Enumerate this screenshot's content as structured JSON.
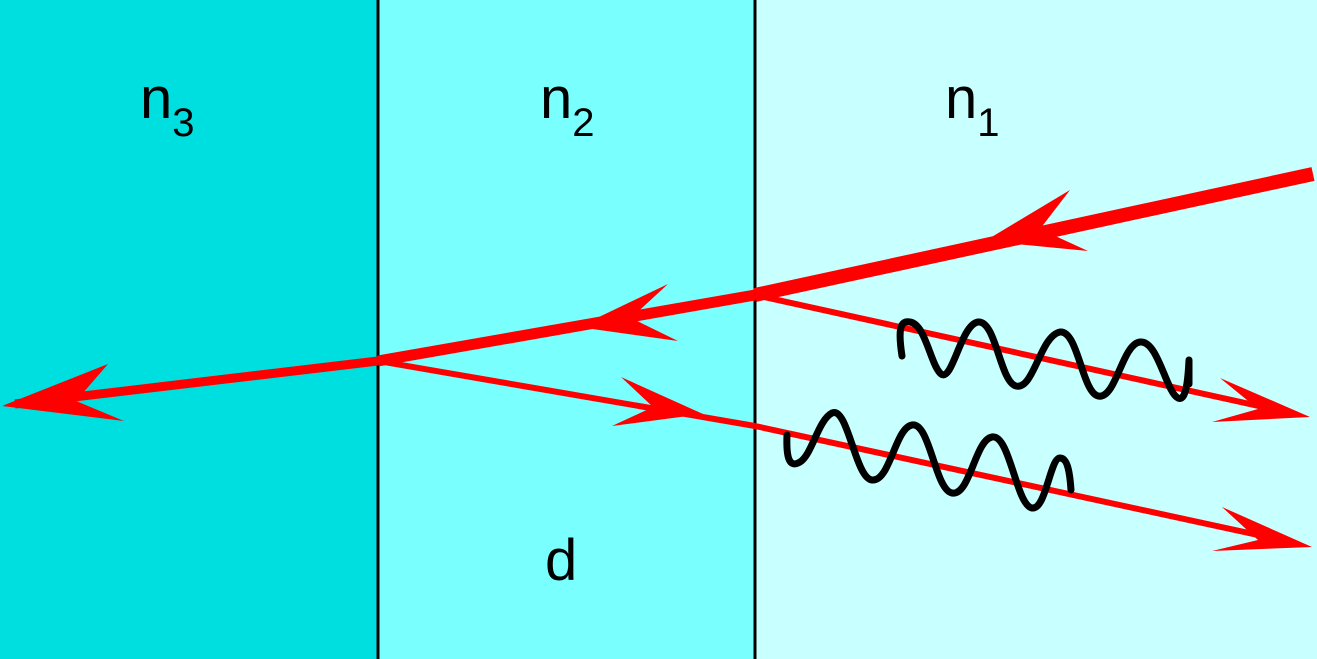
{
  "layers": [
    {
      "id": "n3",
      "label": "n",
      "subscript": "3",
      "color": "#00dfdf"
    },
    {
      "id": "n2",
      "label": "n",
      "subscript": "2",
      "color": "#7affff"
    },
    {
      "id": "n1",
      "label": "n",
      "subscript": "1",
      "color": "#c8ffff"
    }
  ],
  "thickness_label": "d",
  "colors": {
    "ray": "#ff0000",
    "boundary": "#000000",
    "wave": "#000000"
  }
}
